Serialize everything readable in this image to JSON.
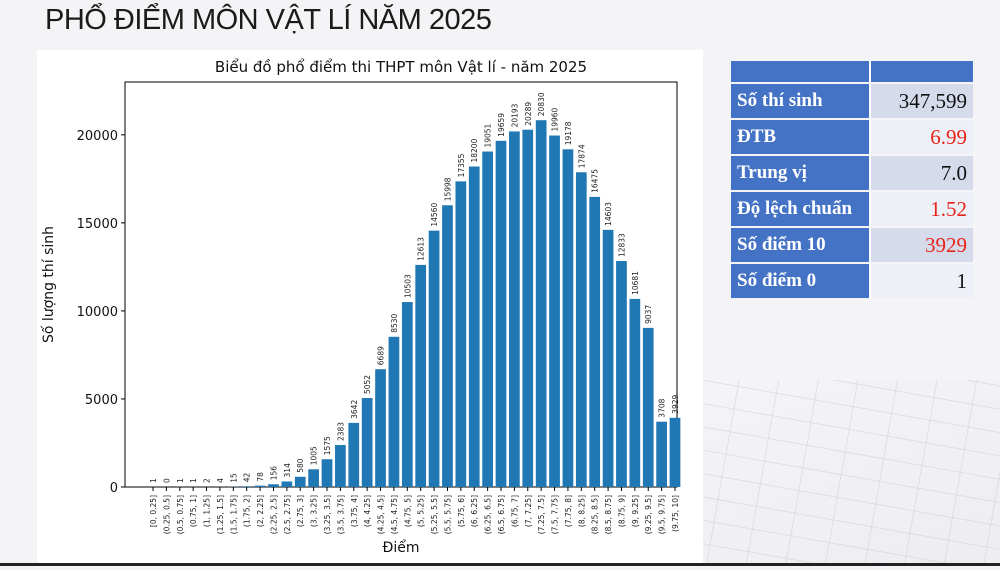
{
  "page_title": "PHỔ ĐIỂM MÔN VẬT LÍ NĂM 2025",
  "stats": [
    {
      "label": "Số thí sinh",
      "value": "347,599",
      "color": "#111111"
    },
    {
      "label": "ĐTB",
      "value": "6.99",
      "color": "#e8231a"
    },
    {
      "label": "Trung vị",
      "value": "7.0",
      "color": "#111111"
    },
    {
      "label": "Độ lệch chuẩn",
      "value": "1.52",
      "color": "#e8231a"
    },
    {
      "label": "Số điểm 10",
      "value": "3929",
      "color": "#e8231a"
    },
    {
      "label": "Số điểm 0",
      "value": "1",
      "color": "#111111"
    }
  ],
  "chart_data": {
    "type": "bar",
    "title": "Biểu đồ phổ điểm thi THPT môn Vật lí - năm 2025",
    "xlabel": "Điểm",
    "ylabel": "Số lượng thí sinh",
    "ylim": [
      0,
      23000
    ],
    "yticks": [
      0,
      5000,
      10000,
      15000,
      20000
    ],
    "bar_color": "#1f77b4",
    "grid": false,
    "categories": [
      "[0, 0.25]",
      "(0.25, 0.5]",
      "(0.5, 0.75]",
      "(0.75, 1]",
      "(1, 1.25]",
      "(1.25, 1.5]",
      "(1.5, 1.75]",
      "(1.75, 2]",
      "(2, 2.25]",
      "(2.25, 2.5]",
      "(2.5, 2.75]",
      "(2.75, 3]",
      "(3, 3.25]",
      "(3.25, 3.5]",
      "(3.5, 3.75]",
      "(3.75, 4]",
      "(4, 4.25]",
      "(4.25, 4.5]",
      "(4.5, 4.75]",
      "(4.75, 5]",
      "(5, 5.25]",
      "(5.25, 5.5]",
      "(5.5, 5.75]",
      "(5.75, 6]",
      "(6, 6.25]",
      "(6.25, 6.5]",
      "(6.5, 6.75]",
      "(6.75, 7]",
      "(7, 7.25]",
      "(7.25, 7.5]",
      "(7.5, 7.75]",
      "(7.75, 8]",
      "(8, 8.25]",
      "(8.25, 8.5]",
      "(8.5, 8.75]",
      "(8.75, 9]",
      "(9, 9.25]",
      "(9.25, 9.5]",
      "(9.5, 9.75]",
      "(9.75, 10]"
    ],
    "values": [
      1,
      0,
      1,
      1,
      2,
      4,
      15,
      42,
      78,
      156,
      314,
      580,
      1005,
      1575,
      2383,
      3642,
      5052,
      6689,
      8530,
      10503,
      12613,
      14560,
      15998,
      17355,
      18200,
      19051,
      19659,
      20193,
      20289,
      20830,
      19960,
      19178,
      17874,
      16475,
      14603,
      12833,
      10681,
      9037,
      3708,
      3929
    ]
  }
}
